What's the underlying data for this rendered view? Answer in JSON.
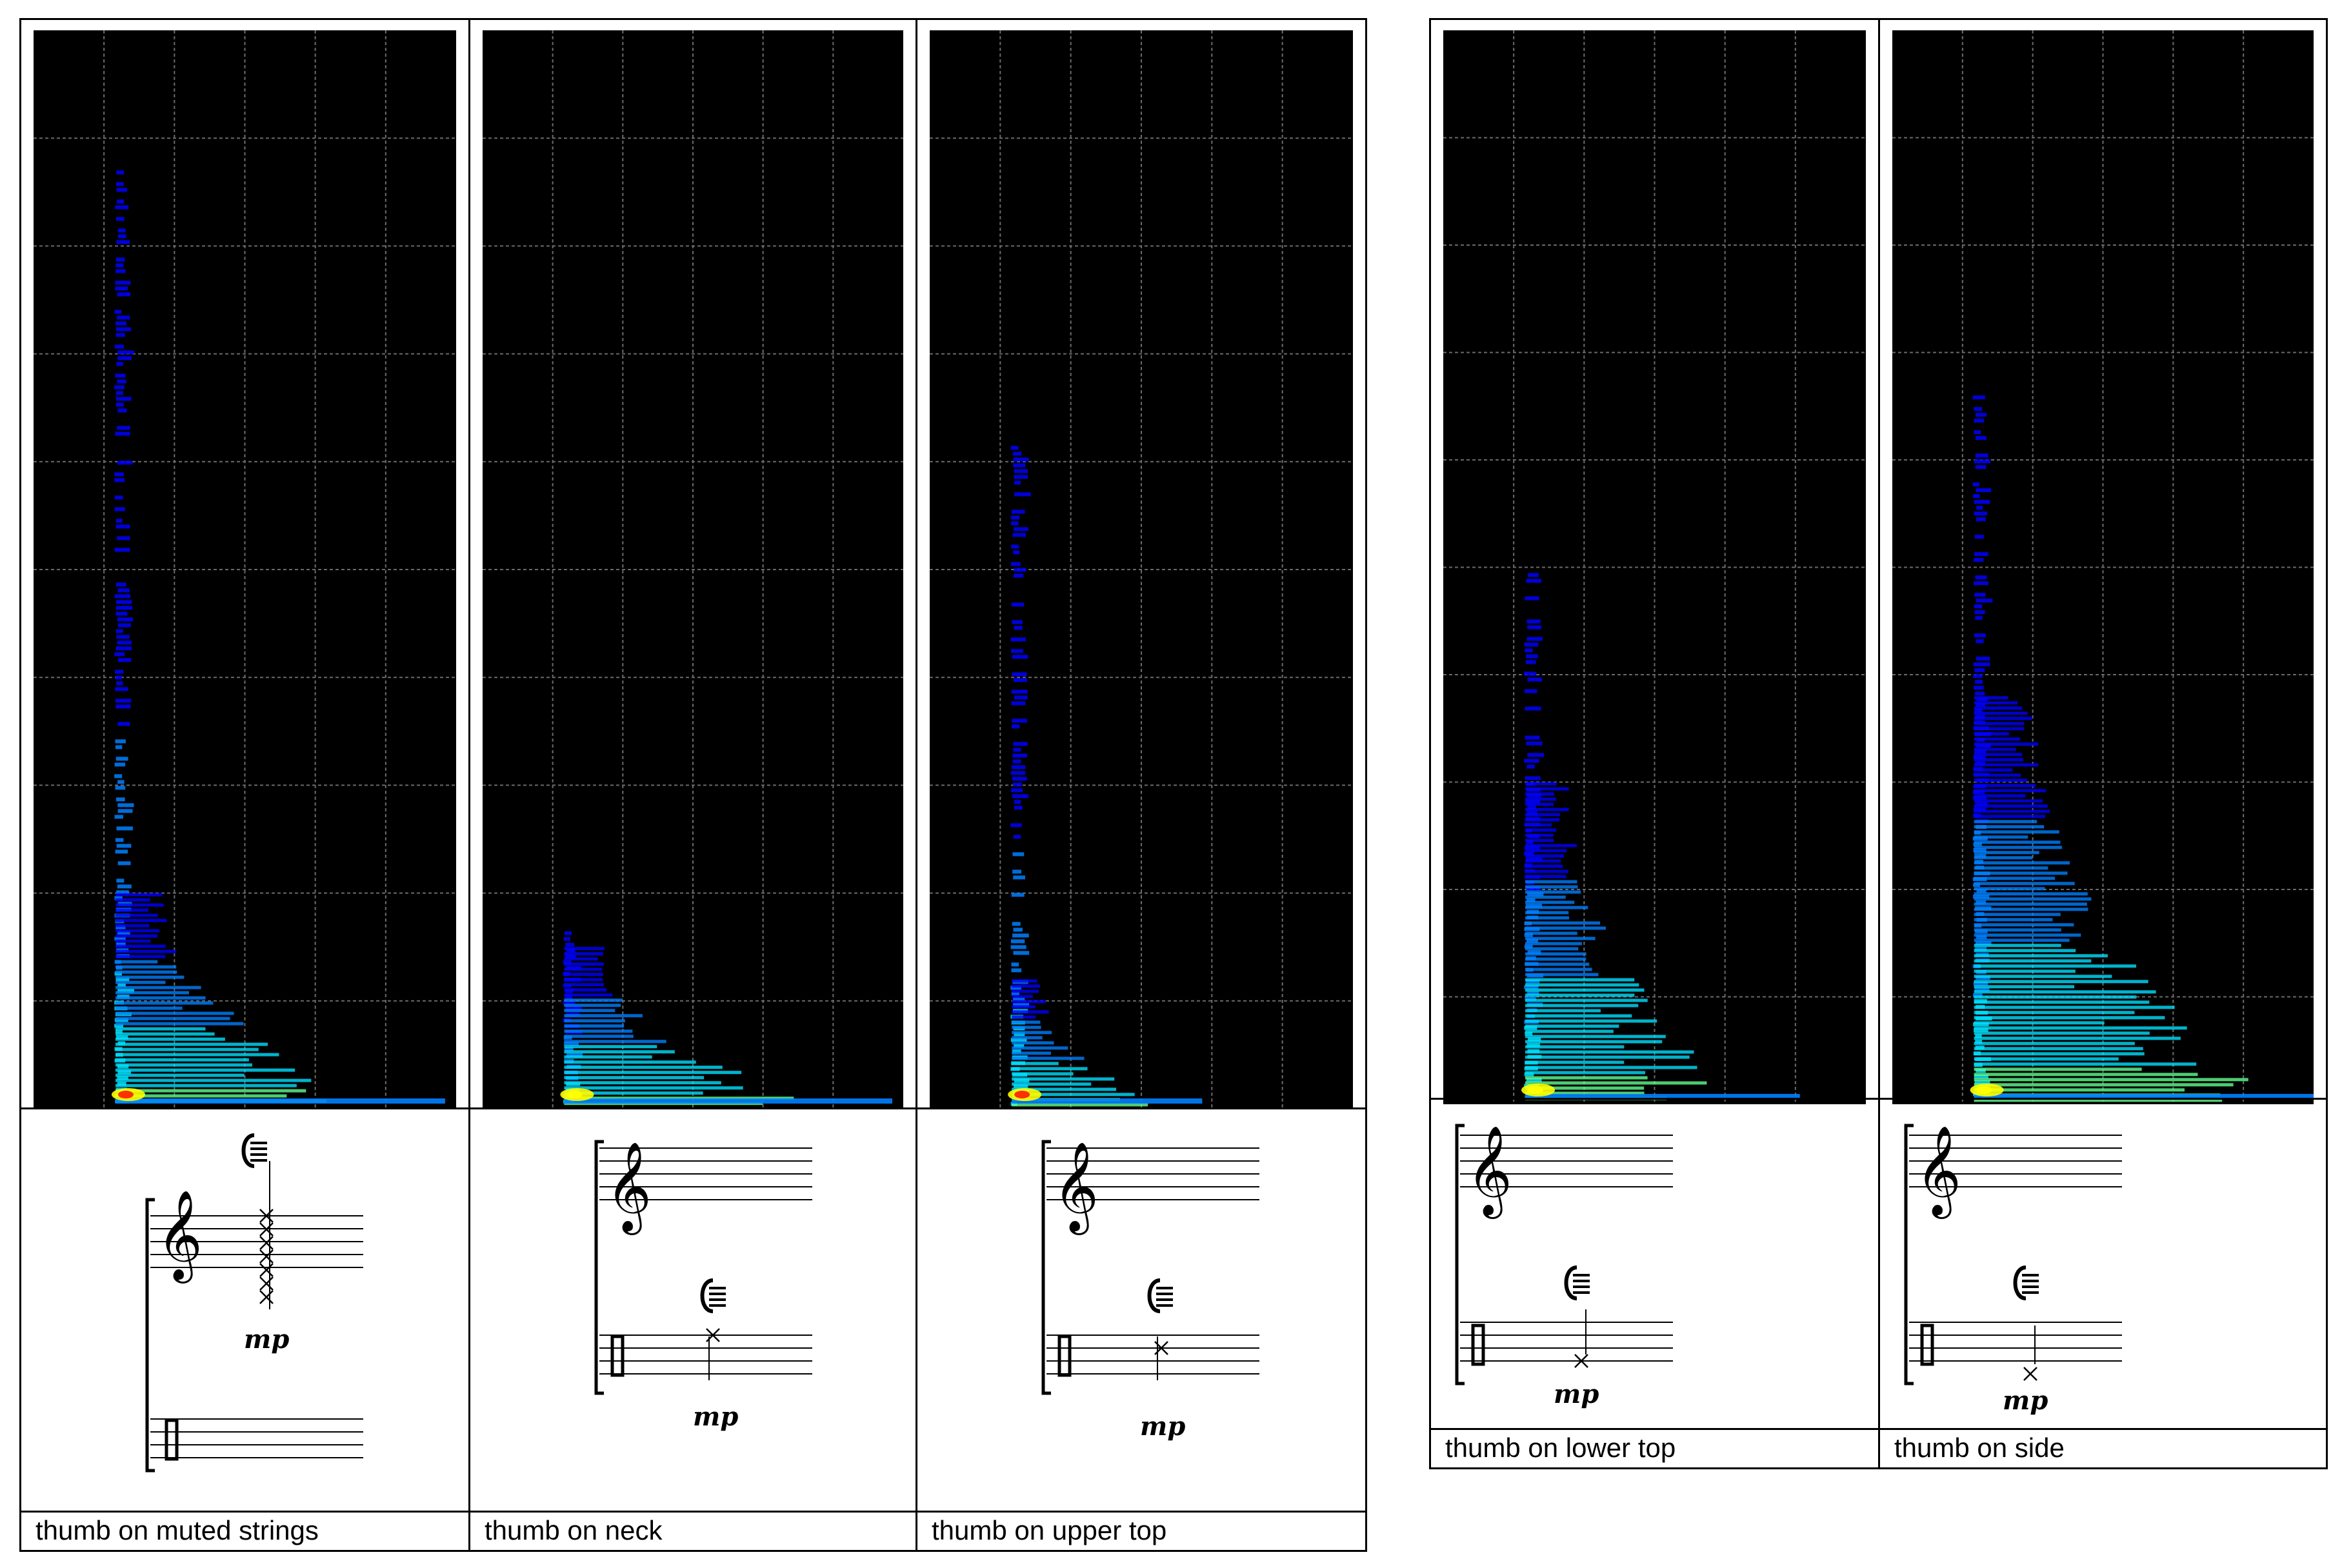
{
  "figure": {
    "panels": [
      {
        "id": "muted-strings",
        "caption": "thumb on muted strings",
        "dynamic": "mp",
        "spectrum": {
          "peak_height": 0.87,
          "body_height": 0.2,
          "tail_length": 0.78,
          "intensity": "strong"
        }
      },
      {
        "id": "neck",
        "caption": "thumb on neck",
        "dynamic": "mp",
        "spectrum": {
          "peak_height": 0.17,
          "body_height": 0.15,
          "tail_length": 0.78,
          "intensity": "medium"
        }
      },
      {
        "id": "upper-top",
        "caption": "thumb on upper top",
        "dynamic": "mp",
        "spectrum": {
          "peak_height": 0.62,
          "body_height": 0.12,
          "tail_length": 0.45,
          "intensity": "strong"
        }
      },
      {
        "id": "lower-top",
        "caption": "thumb on lower top",
        "dynamic": "mp",
        "spectrum": {
          "peak_height": 0.5,
          "body_height": 0.3,
          "tail_length": 0.65,
          "intensity": "medium"
        }
      },
      {
        "id": "side",
        "caption": "thumb on side",
        "dynamic": "mp",
        "spectrum": {
          "peak_height": 0.66,
          "body_height": 0.38,
          "tail_length": 0.88,
          "intensity": "medium"
        }
      }
    ],
    "colormap": [
      "#000000",
      "#0000a0",
      "#0000ff",
      "#0080ff",
      "#00e0ff",
      "#60ff90",
      "#ffff00",
      "#ff3000"
    ],
    "grid": {
      "columns": 6,
      "rows": 10
    }
  }
}
